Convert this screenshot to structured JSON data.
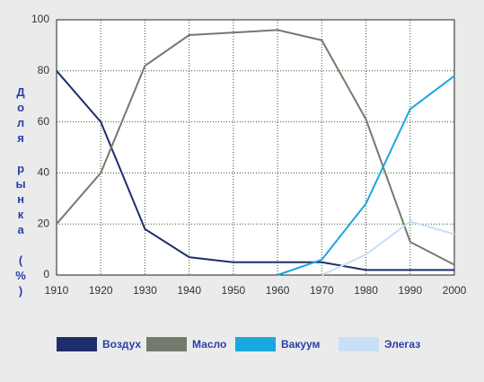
{
  "chart_data": {
    "type": "line",
    "y_label": "Доля рынка (%)",
    "x": [
      1910,
      1920,
      1930,
      1940,
      1950,
      1960,
      1970,
      1980,
      1990,
      2000
    ],
    "xlim": [
      1910,
      2000
    ],
    "xticks": [
      1910,
      1920,
      1930,
      1940,
      1950,
      1960,
      1970,
      1980,
      1990,
      2000
    ],
    "ylim": [
      0,
      100
    ],
    "yticks": [
      0,
      20,
      40,
      60,
      80,
      100
    ],
    "grid": true,
    "series": [
      {
        "name": "Воздух",
        "color": "#1f2d6b",
        "values": [
          80,
          60,
          18,
          7,
          5,
          5,
          5,
          2,
          2,
          2
        ]
      },
      {
        "name": "Масло",
        "color": "#737a6c",
        "values": [
          20,
          40,
          82,
          94,
          95,
          96,
          92,
          61,
          13,
          4
        ]
      },
      {
        "name": "Вакуум",
        "color": "#1aa7e0",
        "values": [
          null,
          null,
          null,
          null,
          null,
          0,
          6,
          28,
          65,
          78
        ]
      },
      {
        "name": "Элегаз",
        "color": "#c8dff5",
        "values": [
          null,
          null,
          null,
          null,
          null,
          null,
          0,
          8,
          21,
          16
        ]
      }
    ]
  }
}
